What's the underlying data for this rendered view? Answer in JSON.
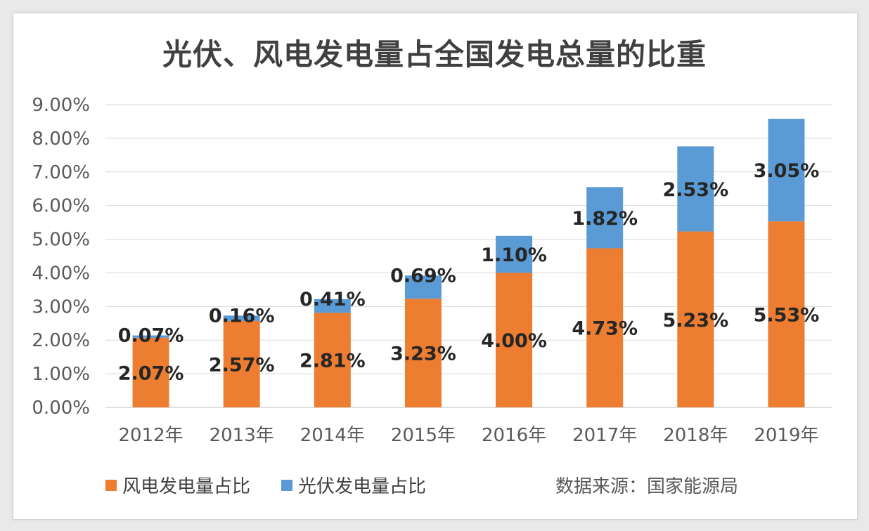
{
  "chart_data": {
    "type": "bar",
    "stacked": true,
    "title": "光伏、风电发电量占全国发电总量的比重",
    "categories": [
      "2012年",
      "2013年",
      "2014年",
      "2015年",
      "2016年",
      "2017年",
      "2018年",
      "2019年"
    ],
    "series": [
      {
        "name": "风电发电量占比",
        "color": "#ed7d31",
        "values": [
          2.07,
          2.57,
          2.81,
          3.23,
          4.0,
          4.73,
          5.23,
          5.53
        ],
        "labels": [
          "2.07%",
          "2.57%",
          "2.81%",
          "3.23%",
          "4.00%",
          "4.73%",
          "5.23%",
          "5.53%"
        ]
      },
      {
        "name": "光伏发电量占比",
        "color": "#5b9bd5",
        "values": [
          0.07,
          0.16,
          0.41,
          0.69,
          1.1,
          1.82,
          2.53,
          3.05
        ],
        "labels": [
          "0.07%",
          "0.16%",
          "0.41%",
          "0.69%",
          "1.10%",
          "1.82%",
          "2.53%",
          "3.05%"
        ]
      }
    ],
    "ylim": [
      0,
      9
    ],
    "yticks": [
      "0.00%",
      "1.00%",
      "2.00%",
      "3.00%",
      "4.00%",
      "5.00%",
      "6.00%",
      "7.00%",
      "8.00%",
      "9.00%"
    ],
    "grid": true,
    "legend_position": "bottom-left",
    "source_note": "数据来源：国家能源局"
  }
}
